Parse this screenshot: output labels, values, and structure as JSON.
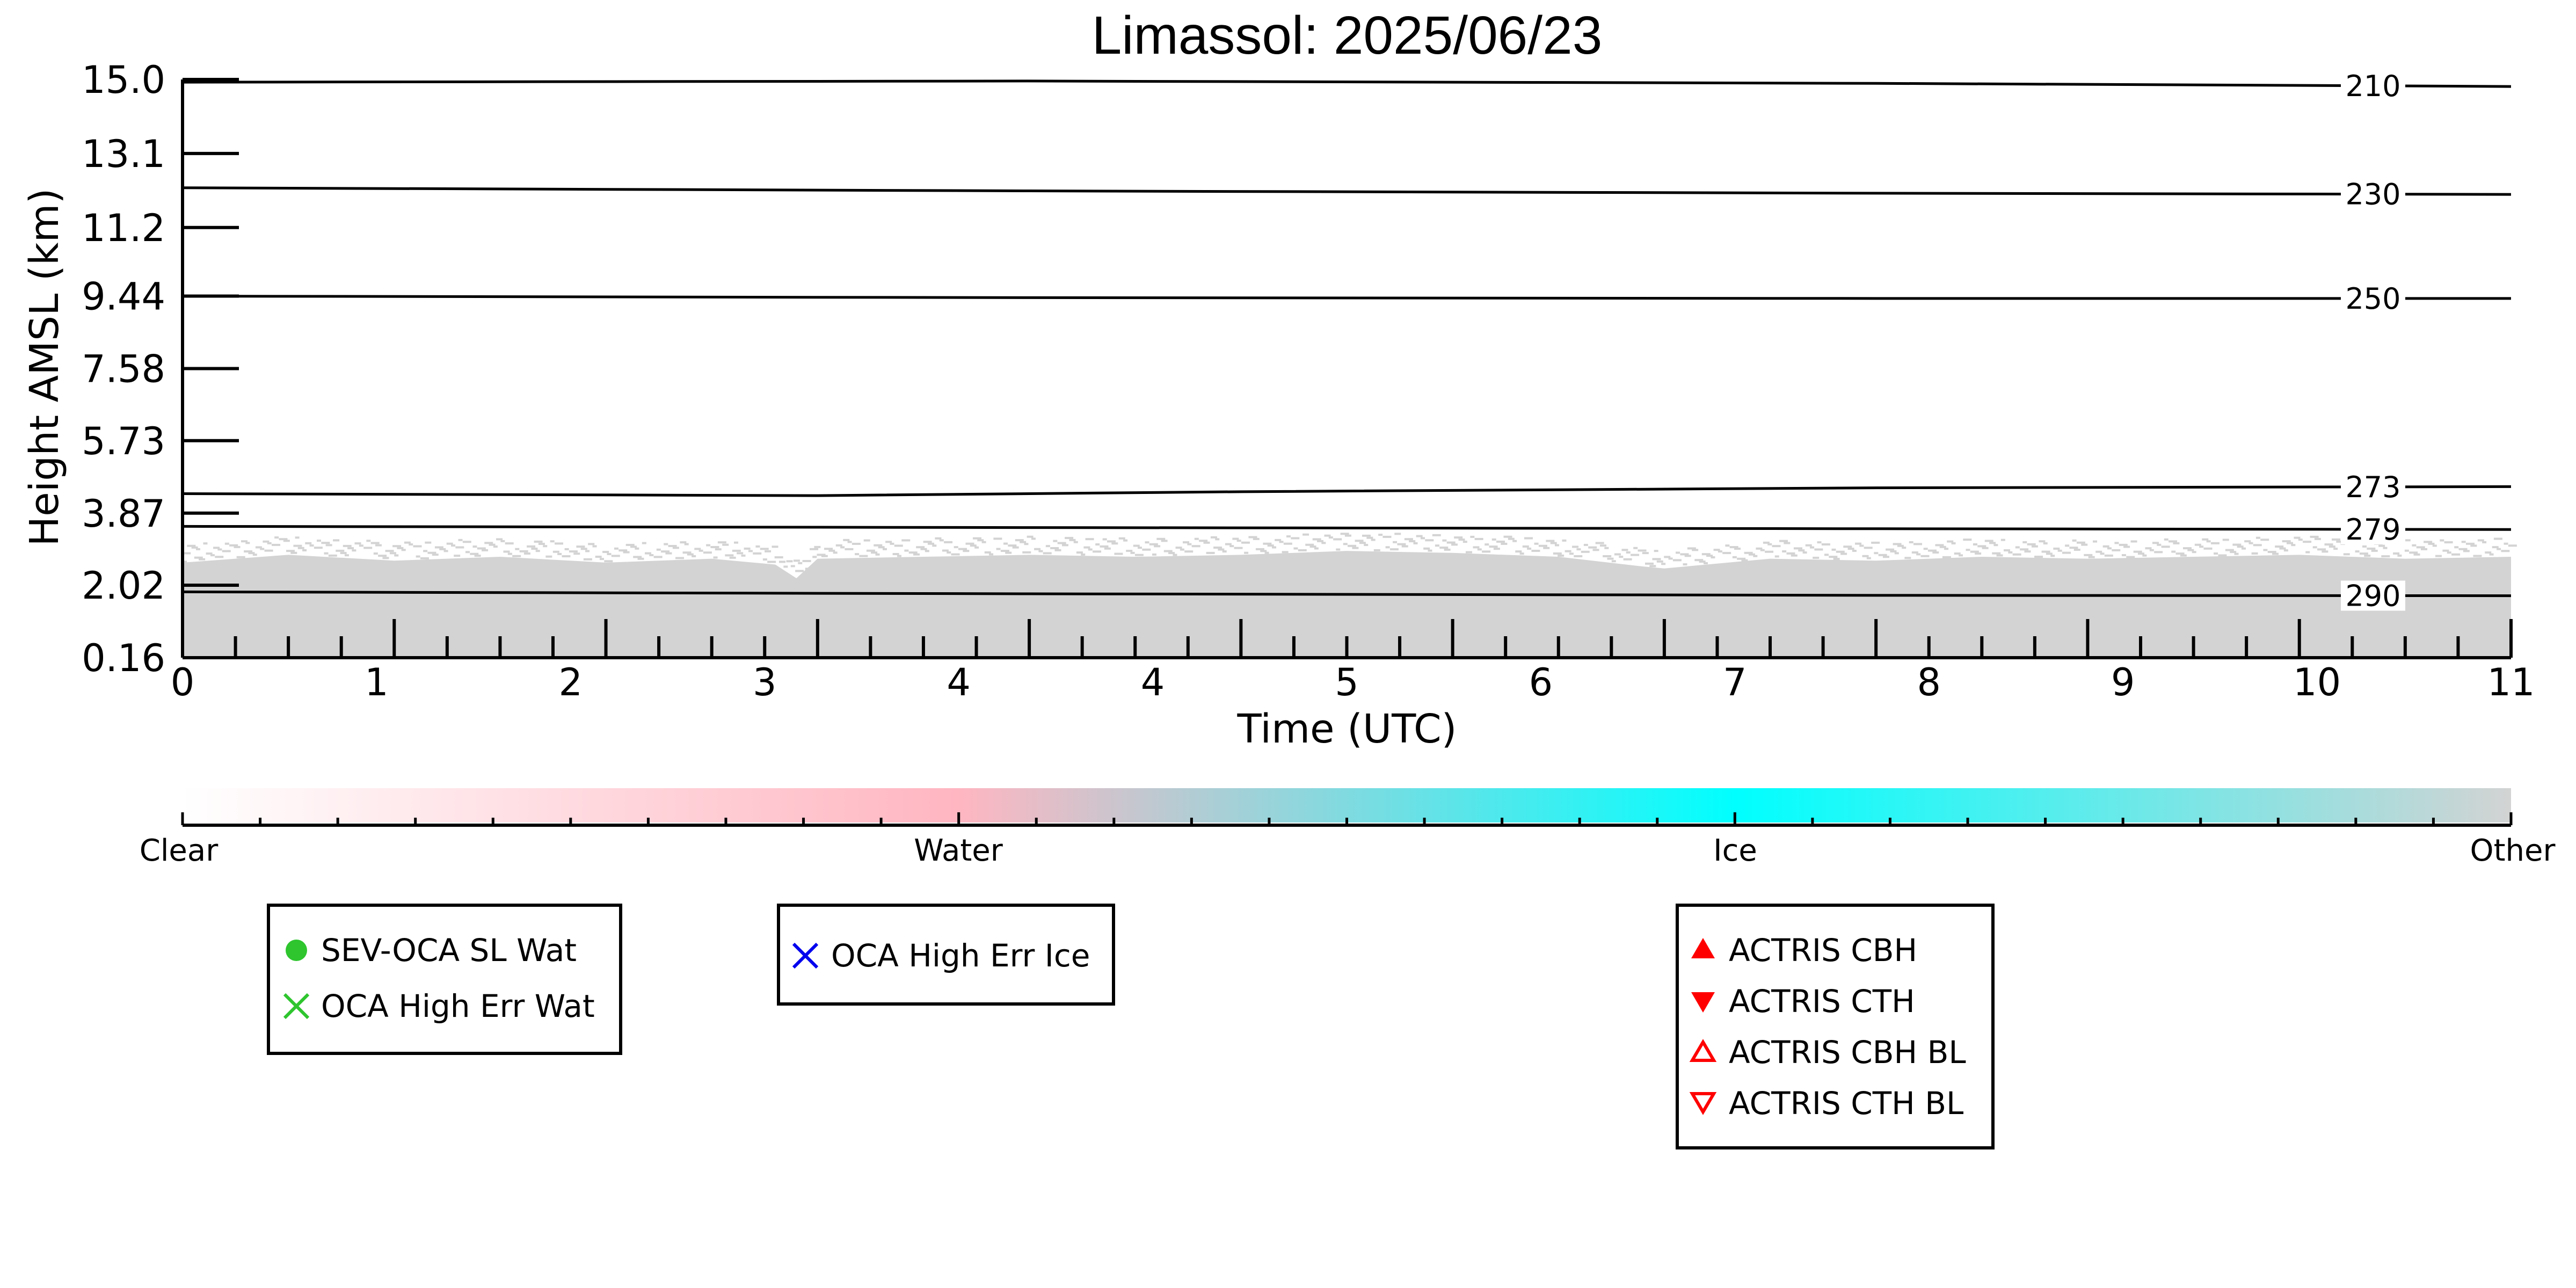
{
  "chart_data": {
    "type": "area",
    "title": "Limassol: 2025/06/23",
    "xlabel": "Time (UTC)",
    "ylabel": "Height AMSL (km)",
    "xlim": [
      0,
      11
    ],
    "ylim": [
      0.16,
      15.0
    ],
    "x_tick_labels": [
      "0",
      "1",
      "2",
      "3",
      "4",
      "4",
      "5",
      "6",
      "7",
      "8",
      "9",
      "10",
      "11"
    ],
    "y_tick_labels": [
      "0.16",
      "2.02",
      "3.87",
      "5.73",
      "7.58",
      "9.44",
      "11.2",
      "13.1",
      "15.0"
    ],
    "y_tick_values": [
      0.16,
      2.02,
      3.87,
      5.73,
      7.58,
      9.44,
      11.2,
      13.1,
      15.0
    ],
    "grid": false,
    "isotherms": [
      {
        "label": "210",
        "x": [
          0,
          4,
          8,
          11
        ],
        "y": [
          14.93,
          14.96,
          14.9,
          14.82
        ]
      },
      {
        "label": "230",
        "x": [
          0,
          4,
          8,
          11
        ],
        "y": [
          12.22,
          12.14,
          12.08,
          12.05
        ]
      },
      {
        "label": "250",
        "x": [
          0,
          4,
          8,
          11
        ],
        "y": [
          9.44,
          9.4,
          9.38,
          9.38
        ]
      },
      {
        "label": "273",
        "x": [
          0,
          3,
          5,
          8,
          11
        ],
        "y": [
          4.37,
          4.32,
          4.42,
          4.52,
          4.55
        ]
      },
      {
        "label": "279",
        "x": [
          0,
          4,
          8,
          11
        ],
        "y": [
          3.53,
          3.5,
          3.47,
          3.45
        ]
      },
      {
        "label": "290",
        "x": [
          0,
          4,
          8,
          11
        ],
        "y": [
          1.85,
          1.8,
          1.76,
          1.75
        ]
      }
    ],
    "series": [
      {
        "classification": "Other",
        "color": "#d3d3d3",
        "x": [
          0,
          0.5,
          1,
          1.5,
          2,
          2.5,
          2.8,
          2.9,
          3,
          3.5,
          4,
          4.5,
          5,
          5.5,
          6,
          6.5,
          6.9,
          7,
          7.5,
          8,
          8.5,
          9,
          9.5,
          10,
          10.5,
          11
        ],
        "y_top": [
          2.6,
          2.8,
          2.65,
          2.75,
          2.6,
          2.7,
          2.55,
          2.2,
          2.7,
          2.75,
          2.8,
          2.75,
          2.8,
          2.9,
          2.85,
          2.75,
          2.5,
          2.45,
          2.7,
          2.65,
          2.75,
          2.7,
          2.75,
          2.8,
          2.7,
          2.75
        ],
        "y_bottom": 0.16
      }
    ]
  },
  "colorbar": {
    "labels": [
      "Clear",
      "Water",
      "Ice",
      "Other"
    ],
    "colors": [
      "#ffffff",
      "#ffb6c1",
      "#00ffff",
      "#d3d3d3"
    ]
  },
  "legends": {
    "sevoca": {
      "items": [
        {
          "label": "SEV-OCA SL Wat",
          "marker": "filled-circle-icon",
          "color": "#2ec52e"
        },
        {
          "label": "OCA High Err Wat",
          "marker": "x-mark-icon",
          "color": "#2ec52e"
        }
      ]
    },
    "oca_ice": {
      "items": [
        {
          "label": "OCA High Err Ice",
          "marker": "x-mark-icon",
          "color": "#0000ee"
        }
      ]
    },
    "actris": {
      "items": [
        {
          "label": "ACTRIS CBH",
          "marker": "filled-triangle-up-icon",
          "color": "#ff0000"
        },
        {
          "label": "ACTRIS CTH",
          "marker": "filled-triangle-down-icon",
          "color": "#ff0000"
        },
        {
          "label": "ACTRIS CBH BL",
          "marker": "open-triangle-up-icon",
          "color": "#ff0000"
        },
        {
          "label": "ACTRIS CTH BL",
          "marker": "open-triangle-down-icon",
          "color": "#ff0000"
        }
      ]
    }
  }
}
